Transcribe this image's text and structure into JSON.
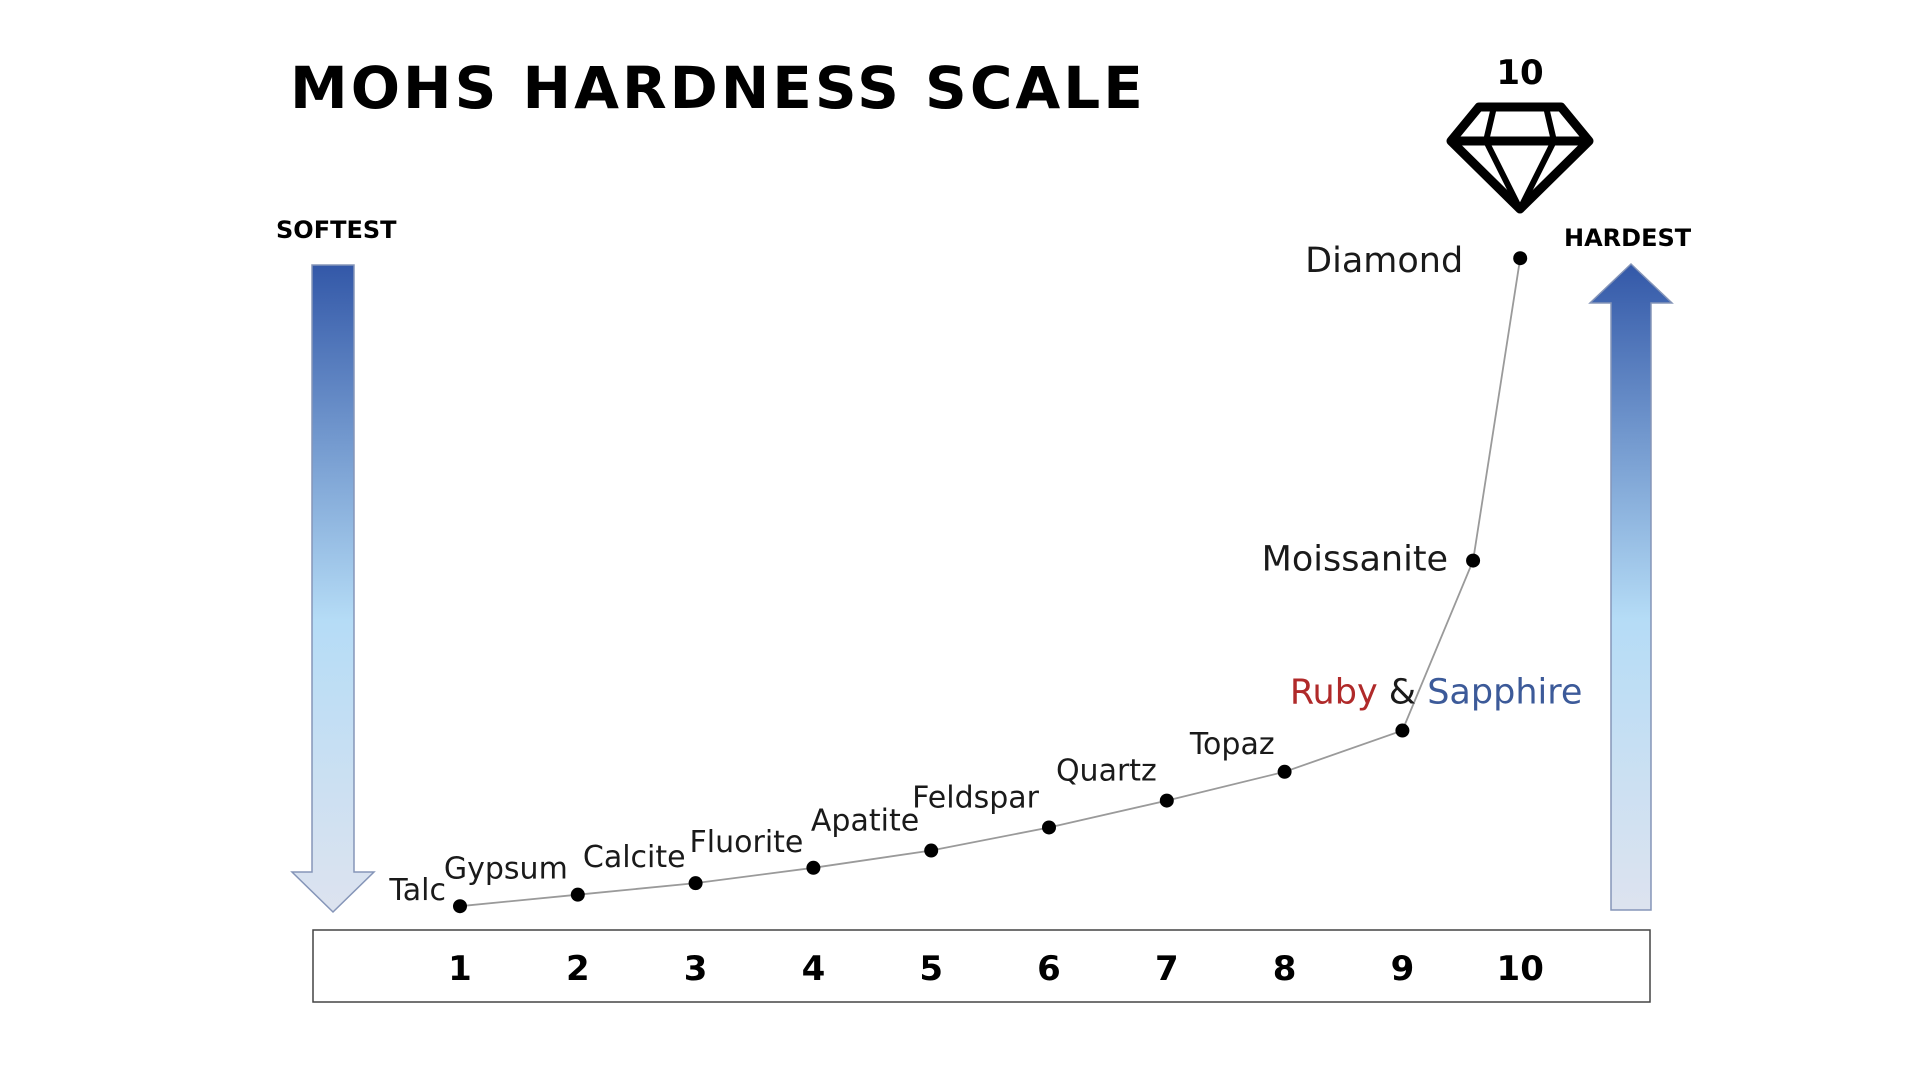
{
  "chart_data": {
    "type": "line",
    "title": "MOHS HARDNESS SCALE",
    "left_label": "SOFTEST",
    "right_label": "HARDEST",
    "top_value_label": "10",
    "x": [
      1,
      2,
      3,
      4,
      5,
      6,
      7,
      8,
      9,
      10
    ],
    "tick_labels": [
      "1",
      "2",
      "3",
      "4",
      "5",
      "6",
      "7",
      "8",
      "9",
      "10"
    ],
    "points": [
      {
        "x": 1,
        "y": 0.05,
        "label": "Talc"
      },
      {
        "x": 2,
        "y": 0.17,
        "label": "Gypsum"
      },
      {
        "x": 3,
        "y": 0.29,
        "label": "Calcite"
      },
      {
        "x": 4,
        "y": 0.45,
        "label": "Fluorite"
      },
      {
        "x": 5,
        "y": 0.63,
        "label": "Apatite"
      },
      {
        "x": 6,
        "y": 0.87,
        "label": "Feldspar"
      },
      {
        "x": 7,
        "y": 1.15,
        "label": "Quartz"
      },
      {
        "x": 8,
        "y": 1.45,
        "label": "Topaz"
      },
      {
        "x": 9,
        "y": 1.88,
        "label_parts": [
          {
            "text": "Ruby",
            "color": "#b02a2a"
          },
          {
            "text": " & ",
            "color": "#1a1a1a"
          },
          {
            "text": "Sapphire",
            "color": "#3c5a99"
          }
        ]
      },
      {
        "x": 9.6,
        "y": 3.65,
        "label": "Moissanite"
      },
      {
        "x": 10,
        "y": 6.8,
        "label": "Diamond"
      }
    ],
    "ylim": [
      0,
      7
    ],
    "grid": false,
    "legend": "none",
    "colors": {
      "line": "#9a9a9a",
      "point": "#000000",
      "arrow_top": "#3358a8",
      "arrow_mid": "#b5dcf6",
      "arrow_bottom": "#dde3ef",
      "ruby": "#b02a2a",
      "sapphire": "#3c5a99"
    },
    "icons": [
      "diamond-icon",
      "down-arrow",
      "up-arrow"
    ]
  }
}
